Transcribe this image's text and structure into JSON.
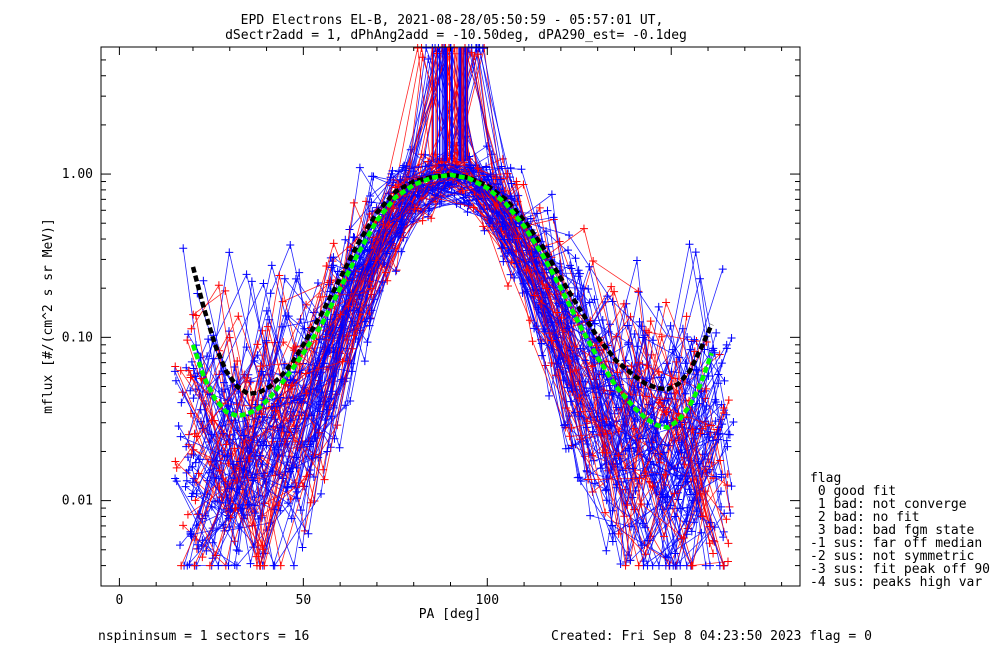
{
  "chart_data": {
    "type": "line",
    "title": "EPD Electrons EL-B, 2021-08-28/05:50:59 - 05:57:01 UT,",
    "subtitle": "dSectr2add = 1, dPhAng2add = -10.50deg, dPA290_est=  -0.1deg",
    "xlabel": "PA [deg]",
    "ylabel": "mflux [#/(cm^2 s sr MeV)]",
    "xlim": [
      -5,
      185
    ],
    "ylim": [
      0.003,
      6
    ],
    "yscale": "log",
    "x_ticks": [
      0,
      50,
      100,
      150
    ],
    "x_tick_labels": [
      "0",
      "50",
      "100",
      "150"
    ],
    "y_ticks": [
      0.01,
      0.1,
      1.0
    ],
    "y_tick_labels": [
      "0.01",
      "0.10",
      "1.00"
    ],
    "grid": false,
    "series": [
      {
        "color": "#000000",
        "style": "dashed-thick",
        "x": [
          20,
          23,
          26,
          29,
          32,
          35,
          38,
          41,
          44,
          47,
          50,
          55,
          60,
          65,
          70,
          75,
          80,
          85,
          90,
          95,
          100,
          105,
          110,
          115,
          120,
          125,
          130,
          135,
          140,
          143,
          146,
          149,
          152,
          155,
          158,
          161
        ],
        "y": [
          0.27,
          0.15,
          0.09,
          0.062,
          0.05,
          0.045,
          0.046,
          0.05,
          0.058,
          0.07,
          0.09,
          0.14,
          0.23,
          0.38,
          0.58,
          0.78,
          0.9,
          0.96,
          0.99,
          0.95,
          0.85,
          0.7,
          0.52,
          0.36,
          0.23,
          0.15,
          0.1,
          0.072,
          0.058,
          0.052,
          0.049,
          0.048,
          0.052,
          0.062,
          0.085,
          0.12
        ]
      },
      {
        "color": "#00ff00",
        "style": "dashed-thick",
        "x": [
          20,
          23,
          26,
          29,
          32,
          35,
          38,
          41,
          44,
          47,
          50,
          55,
          60,
          65,
          70,
          75,
          80,
          85,
          90,
          95,
          100,
          105,
          110,
          115,
          120,
          125,
          130,
          135,
          140,
          143,
          146,
          149,
          152,
          155,
          158,
          161
        ],
        "y": [
          0.09,
          0.057,
          0.042,
          0.035,
          0.033,
          0.034,
          0.037,
          0.043,
          0.052,
          0.064,
          0.08,
          0.12,
          0.2,
          0.33,
          0.52,
          0.72,
          0.86,
          0.95,
          0.99,
          0.94,
          0.82,
          0.66,
          0.48,
          0.32,
          0.2,
          0.12,
          0.075,
          0.05,
          0.037,
          0.032,
          0.029,
          0.028,
          0.031,
          0.038,
          0.052,
          0.08
        ]
      }
    ],
    "legend": {
      "placement": "right",
      "title": "flag",
      "entries": [
        " 0 good fit",
        " 1 bad: not converge",
        " 2 bad: no fit",
        " 3 bad: bad fgm state",
        "-1 sus: far off median",
        "-2 sus: not symmetric",
        "-3 sus: fit peak off 90",
        "-4 sus: peaks high var"
      ]
    },
    "footer_left": "nspininsum =  1  sectors = 16",
    "footer_right": "Created: Fri Sep  8 04:23:50 2023   flag = 0"
  },
  "colors": {
    "trace_blue": "#0000ff",
    "trace_red": "#ff0000",
    "fit_black": "#000000",
    "fit_green": "#00ff00"
  }
}
